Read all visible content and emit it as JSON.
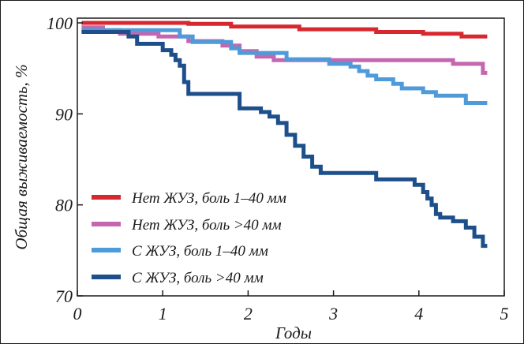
{
  "chart_data": {
    "type": "line",
    "title": "",
    "xlabel": "Годы",
    "ylabel": "Общая выживаемость, %",
    "xlim": [
      0,
      5
    ],
    "ylim": [
      70,
      100
    ],
    "x_ticks": [
      0,
      1,
      2,
      3,
      4,
      5
    ],
    "x_tick_labels": [
      "0",
      "1",
      "2",
      "3",
      "4",
      "5"
    ],
    "y_ticks": [
      70,
      80,
      90,
      100
    ],
    "y_tick_labels": [
      "70",
      "80",
      "90",
      "100"
    ],
    "grid": false,
    "legend_position": "bottom-left",
    "series": [
      {
        "name": "Нет ЖУЗ, боль 1–40 мм",
        "color": "#d7282f",
        "points": [
          [
            0.05,
            100
          ],
          [
            1.3,
            100
          ],
          [
            1.3,
            99.9
          ],
          [
            1.8,
            99.9
          ],
          [
            1.8,
            99.6
          ],
          [
            2.6,
            99.6
          ],
          [
            2.6,
            99.3
          ],
          [
            3.5,
            99.3
          ],
          [
            3.5,
            99
          ],
          [
            4.05,
            99
          ],
          [
            4.05,
            98.8
          ],
          [
            4.5,
            98.8
          ],
          [
            4.5,
            98.5
          ],
          [
            4.8,
            98.5
          ]
        ]
      },
      {
        "name": "Нет ЖУЗ, боль >40 мм",
        "color": "#c566b1",
        "points": [
          [
            0.05,
            99.5
          ],
          [
            0.3,
            99.5
          ],
          [
            0.3,
            99.2
          ],
          [
            0.5,
            99.2
          ],
          [
            0.5,
            98.8
          ],
          [
            0.95,
            98.8
          ],
          [
            0.95,
            98.5
          ],
          [
            1.3,
            98.5
          ],
          [
            1.3,
            98
          ],
          [
            1.7,
            98
          ],
          [
            1.7,
            97.5
          ],
          [
            1.9,
            97.5
          ],
          [
            1.9,
            96.9
          ],
          [
            2.1,
            96.9
          ],
          [
            2.1,
            96.3
          ],
          [
            2.3,
            96.3
          ],
          [
            2.3,
            95.9
          ],
          [
            4.4,
            95.9
          ],
          [
            4.4,
            95.5
          ],
          [
            4.75,
            95.5
          ],
          [
            4.75,
            94.5
          ],
          [
            4.8,
            94.5
          ]
        ]
      },
      {
        "name": "С ЖУЗ, боль 1–40 мм",
        "color": "#4f9bd9",
        "points": [
          [
            0.05,
            99.2
          ],
          [
            1.2,
            99.2
          ],
          [
            1.2,
            98.5
          ],
          [
            1.35,
            98.5
          ],
          [
            1.35,
            97.9
          ],
          [
            1.8,
            97.9
          ],
          [
            1.8,
            97.2
          ],
          [
            1.9,
            97.2
          ],
          [
            1.9,
            96.7
          ],
          [
            2.45,
            96.7
          ],
          [
            2.45,
            96
          ],
          [
            2.95,
            96
          ],
          [
            2.95,
            95.5
          ],
          [
            3.2,
            95.5
          ],
          [
            3.2,
            95.2
          ],
          [
            3.3,
            95.2
          ],
          [
            3.3,
            94.7
          ],
          [
            3.4,
            94.7
          ],
          [
            3.4,
            94.2
          ],
          [
            3.5,
            94.2
          ],
          [
            3.5,
            93.8
          ],
          [
            3.7,
            93.8
          ],
          [
            3.7,
            93.3
          ],
          [
            3.8,
            93.3
          ],
          [
            3.8,
            92.8
          ],
          [
            4.05,
            92.8
          ],
          [
            4.05,
            92.4
          ],
          [
            4.2,
            92.4
          ],
          [
            4.2,
            92
          ],
          [
            4.55,
            92
          ],
          [
            4.55,
            91.2
          ],
          [
            4.8,
            91.2
          ]
        ]
      },
      {
        "name": "С ЖУЗ, боль >40 мм",
        "color": "#1d4f8a",
        "points": [
          [
            0.05,
            99
          ],
          [
            0.6,
            99
          ],
          [
            0.6,
            98.5
          ],
          [
            0.7,
            98.5
          ],
          [
            0.7,
            97.7
          ],
          [
            1.0,
            97.7
          ],
          [
            1.0,
            97
          ],
          [
            1.1,
            97
          ],
          [
            1.1,
            96.5
          ],
          [
            1.15,
            96.5
          ],
          [
            1.15,
            95.9
          ],
          [
            1.2,
            95.9
          ],
          [
            1.2,
            95.3
          ],
          [
            1.25,
            95.3
          ],
          [
            1.25,
            93.5
          ],
          [
            1.3,
            93.5
          ],
          [
            1.3,
            92.2
          ],
          [
            1.9,
            92.2
          ],
          [
            1.9,
            90.6
          ],
          [
            2.15,
            90.6
          ],
          [
            2.15,
            90.2
          ],
          [
            2.25,
            90.2
          ],
          [
            2.25,
            89.7
          ],
          [
            2.35,
            89.7
          ],
          [
            2.35,
            89
          ],
          [
            2.45,
            89
          ],
          [
            2.45,
            87.7
          ],
          [
            2.55,
            87.7
          ],
          [
            2.55,
            86.5
          ],
          [
            2.65,
            86.5
          ],
          [
            2.65,
            85.3
          ],
          [
            2.75,
            85.3
          ],
          [
            2.75,
            84.2
          ],
          [
            2.85,
            84.2
          ],
          [
            2.85,
            83.5
          ],
          [
            3.5,
            83.5
          ],
          [
            3.5,
            82.8
          ],
          [
            3.95,
            82.8
          ],
          [
            3.95,
            82.2
          ],
          [
            4.05,
            82.2
          ],
          [
            4.05,
            81.4
          ],
          [
            4.1,
            81.4
          ],
          [
            4.1,
            80.7
          ],
          [
            4.15,
            80.7
          ],
          [
            4.15,
            80
          ],
          [
            4.2,
            80
          ],
          [
            4.2,
            79
          ],
          [
            4.25,
            79
          ],
          [
            4.25,
            78.6
          ],
          [
            4.4,
            78.6
          ],
          [
            4.4,
            78.2
          ],
          [
            4.55,
            78.2
          ],
          [
            4.55,
            77.5
          ],
          [
            4.65,
            77.5
          ],
          [
            4.65,
            76.5
          ],
          [
            4.75,
            76.5
          ],
          [
            4.75,
            75.5
          ],
          [
            4.8,
            75.5
          ]
        ]
      }
    ]
  }
}
